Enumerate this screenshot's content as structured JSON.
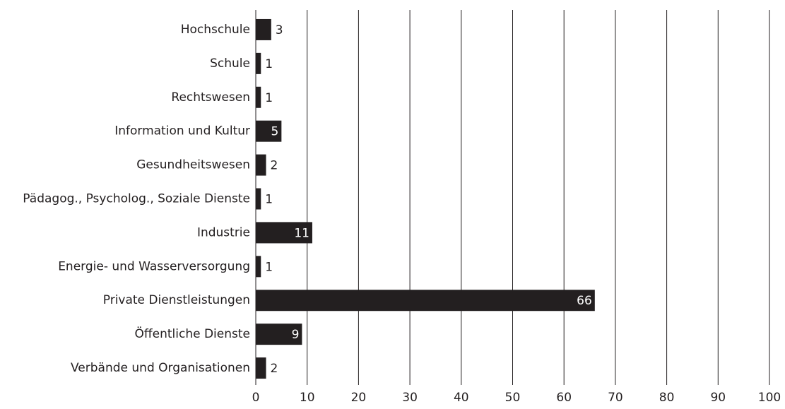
{
  "chart_data": {
    "type": "bar",
    "orientation": "horizontal",
    "categories": [
      "Hochschule",
      "Schule",
      "Rechtswesen",
      "Information und Kultur",
      "Gesundheitswesen",
      "Pädagog., Psycholog., Soziale Dienste",
      "Industrie",
      "Energie- und Wasserversorgung",
      "Private Dienstleistungen",
      "Öffentliche Dienste",
      "Verbände und Organisationen"
    ],
    "values": [
      3,
      1,
      1,
      5,
      2,
      1,
      11,
      1,
      66,
      9,
      2
    ],
    "color": "#231f20",
    "xlim": [
      0,
      100
    ],
    "xticks": [
      0,
      10,
      20,
      30,
      40,
      50,
      60,
      70,
      80,
      90,
      100
    ],
    "grid": true
  }
}
